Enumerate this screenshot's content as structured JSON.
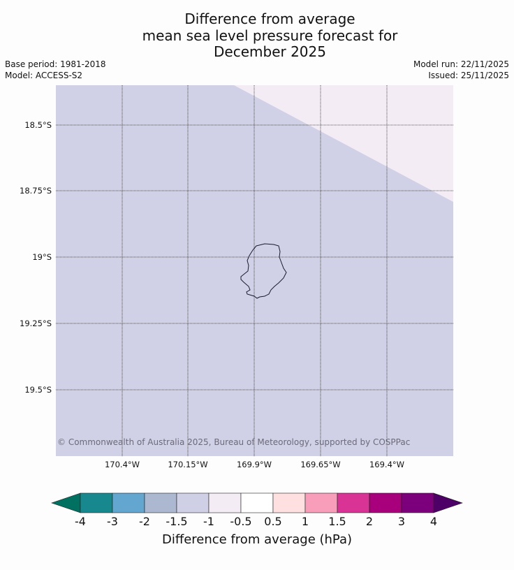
{
  "title_lines": [
    "Difference from average",
    "mean sea level pressure forecast for",
    "December 2025"
  ],
  "base_period": "Base period: 1981-2018",
  "model": "Model: ACCESS-S2",
  "model_run": "Model run: 22/11/2025",
  "issued": "Issued: 25/11/2025",
  "map": {
    "lat_labels": [
      "18.5°S",
      "18.75°S",
      "19°S",
      "19.25°S",
      "19.5°S"
    ],
    "lon_labels": [
      "170.4°W",
      "170.15°W",
      "169.9°W",
      "169.65°W",
      "169.4°W"
    ],
    "background_category": "-1.5 to -1",
    "region_category": "-1 to -0.5",
    "copyright": "© Commonwealth of Australia 2025, Bureau of Meteorology, supported by COSPPac",
    "land_outline": "Niue"
  },
  "colorbar": {
    "ticks": [
      "-4",
      "-3",
      "-2",
      "-1.5",
      "-1",
      "-0.5",
      "0.5",
      "1",
      "1.5",
      "2",
      "3",
      "4"
    ],
    "colors": [
      "#16888e",
      "#63a6d0",
      "#abb8d0",
      "#cfcfe6",
      "#f3ecf4",
      "#ffffff",
      "#fde0df",
      "#f89ebb",
      "#d83395",
      "#a8007d",
      "#7c007c"
    ],
    "under_color": "#007060",
    "over_color": "#4d0066",
    "title": "Difference from average (hPa)"
  }
}
